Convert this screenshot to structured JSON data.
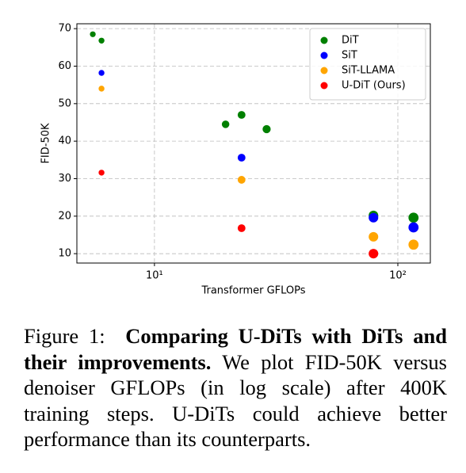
{
  "chart_data": {
    "type": "scatter",
    "xlabel": "Transformer GFLOPs",
    "ylabel": "FID-50K",
    "xscale": "log",
    "xlim": [
      4.8,
      136
    ],
    "ylim": [
      7.5,
      71.3
    ],
    "xticks": [
      {
        "value": 10,
        "label": "10¹"
      },
      {
        "value": 100,
        "label": "10²"
      }
    ],
    "yticks": [
      10,
      20,
      30,
      40,
      50,
      60,
      70
    ],
    "grid": true,
    "legend": "upper right",
    "series": [
      {
        "name": "DiT",
        "color": "#008000",
        "x": [
          5.58,
          6.06,
          19.6,
          22.8,
          28.9,
          79.4,
          116
        ],
        "values": [
          68.5,
          66.8,
          44.5,
          47,
          43.2,
          20.2,
          19.6
        ]
      },
      {
        "name": "SiT",
        "color": "#0000ff",
        "x": [
          6.06,
          22.8,
          79.4,
          116
        ],
        "values": [
          58.2,
          35.6,
          19.6,
          17
        ]
      },
      {
        "name": "SiT-LLAMA",
        "color": "#ffa500",
        "x": [
          6.06,
          22.8,
          79.4,
          116
        ],
        "values": [
          54,
          29.7,
          14.5,
          12.4
        ]
      },
      {
        "name": "U-DiT (Ours)",
        "color": "#ff0000",
        "x": [
          6.06,
          22.8,
          79.4
        ],
        "values": [
          31.6,
          16.8,
          10
        ]
      }
    ]
  },
  "caption": {
    "label": "Figure 1:",
    "title": "Comparing U-DiTs with DiTs and their improvements.",
    "text": "We plot FID-50K versus denoiser GFLOPs (in log scale) after 400K training steps. U-DiTs could achieve better performance than its counterparts."
  }
}
